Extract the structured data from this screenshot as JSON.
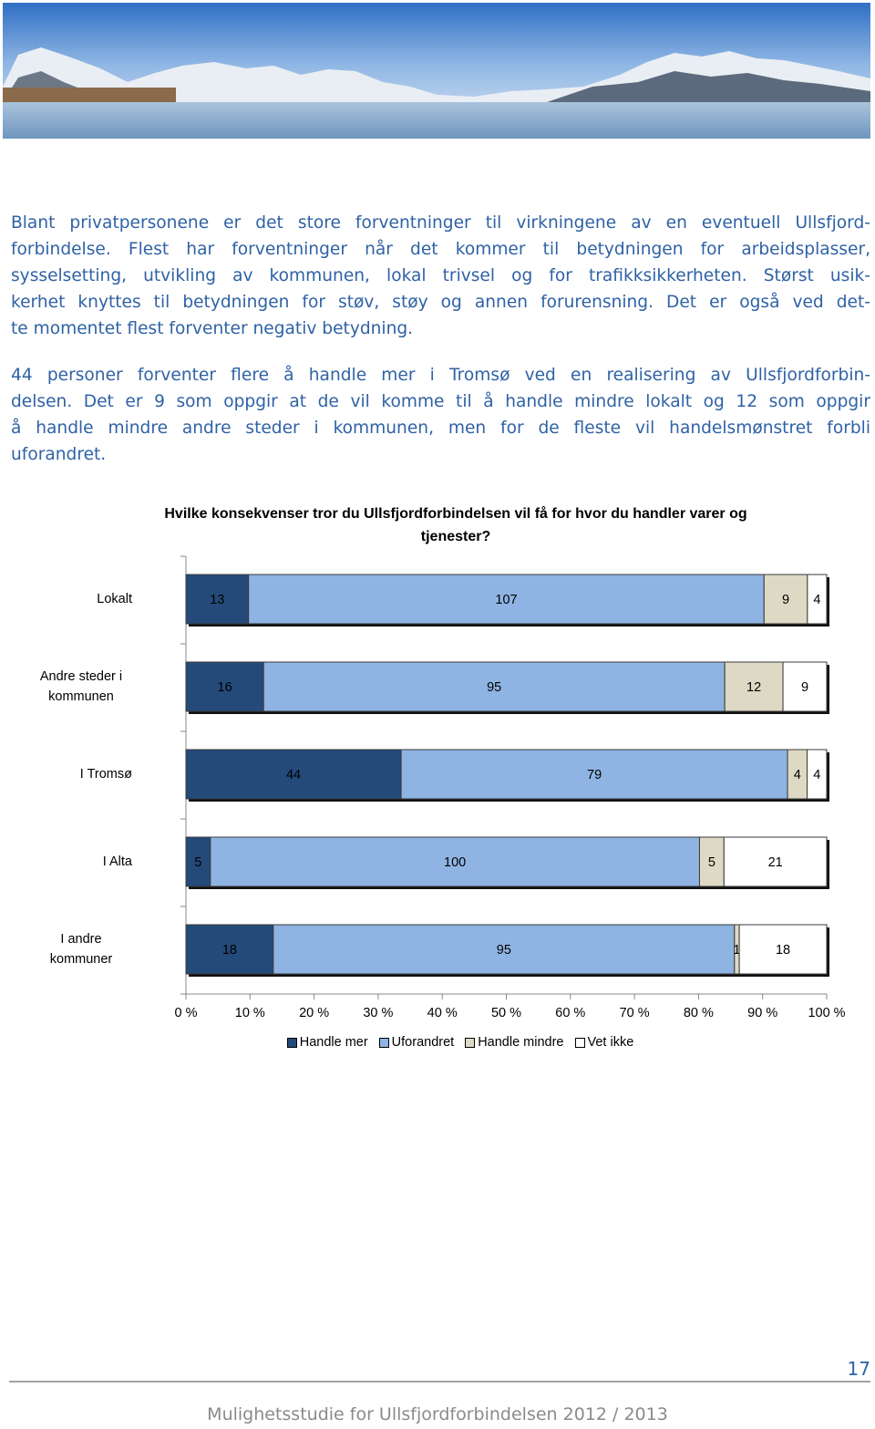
{
  "paragraphs": [
    [
      "Blant privatpersonene er det store forventninger til virkningene av en eventuell Ullsfjord-",
      "forbindelse. Flest har forventninger når det kommer til betydningen for arbeidsplasser,",
      "sysselsetting, utvikling av kommunen, lokal trivsel og for trafikksikkerheten. Størst usik-",
      "kerhet knyttes til betydningen for støv, støy og annen forurensning. Det er også ved det-",
      "te momentet flest forventer negativ betydning."
    ],
    [
      "44 personer forventer flere å handle mer i Tromsø ved en realisering av Ullsfjordforbin-",
      "delsen. Det er 9 som oppgir at de vil komme til å handle mindre lokalt og 12 som oppgir",
      "å handle mindre andre steder i kommunen, men for de fleste vil handelsmønstret forbli",
      "uforandret."
    ]
  ],
  "chart_data": {
    "type": "bar",
    "orientation": "horizontal",
    "stacked": "percent",
    "title": "Hvilke konsekvenser tror du Ullsfjordforbindelsen vil få for hvor du handler varer og tjenester?",
    "categories": [
      "Lokalt",
      "Andre steder i kommunen",
      "I Tromsø",
      "I Alta",
      "I andre kommuner"
    ],
    "series": [
      {
        "name": "Handle mer",
        "color": "#244a7a",
        "values": [
          13,
          16,
          44,
          5,
          18
        ]
      },
      {
        "name": "Uforandret",
        "color": "#8fb4e3",
        "values": [
          107,
          95,
          79,
          100,
          95
        ]
      },
      {
        "name": "Handle mindre",
        "color": "#ddd9c4",
        "values": [
          9,
          12,
          4,
          5,
          1
        ]
      },
      {
        "name": "Vet ikke",
        "color": "#ffffff",
        "values": [
          4,
          9,
          4,
          21,
          18
        ]
      }
    ],
    "xlim": [
      0,
      100
    ],
    "xticks": [
      {
        "value": 0,
        "label": "0 %"
      },
      {
        "value": 10,
        "label": "10 %"
      },
      {
        "value": 20,
        "label": "20 %"
      },
      {
        "value": 30,
        "label": "30 %"
      },
      {
        "value": 40,
        "label": "40 %"
      },
      {
        "value": 50,
        "label": "50 %"
      },
      {
        "value": 60,
        "label": "60 %"
      },
      {
        "value": 70,
        "label": "70 %"
      },
      {
        "value": 80,
        "label": "80 %"
      },
      {
        "value": 90,
        "label": "90 %"
      },
      {
        "value": 100,
        "label": "100 %"
      }
    ],
    "legend": "bottom"
  },
  "footer": {
    "page_number": "17",
    "text": "Mulighetsstudie for Ullsfjordforbindelsen 2012 / 2013"
  }
}
